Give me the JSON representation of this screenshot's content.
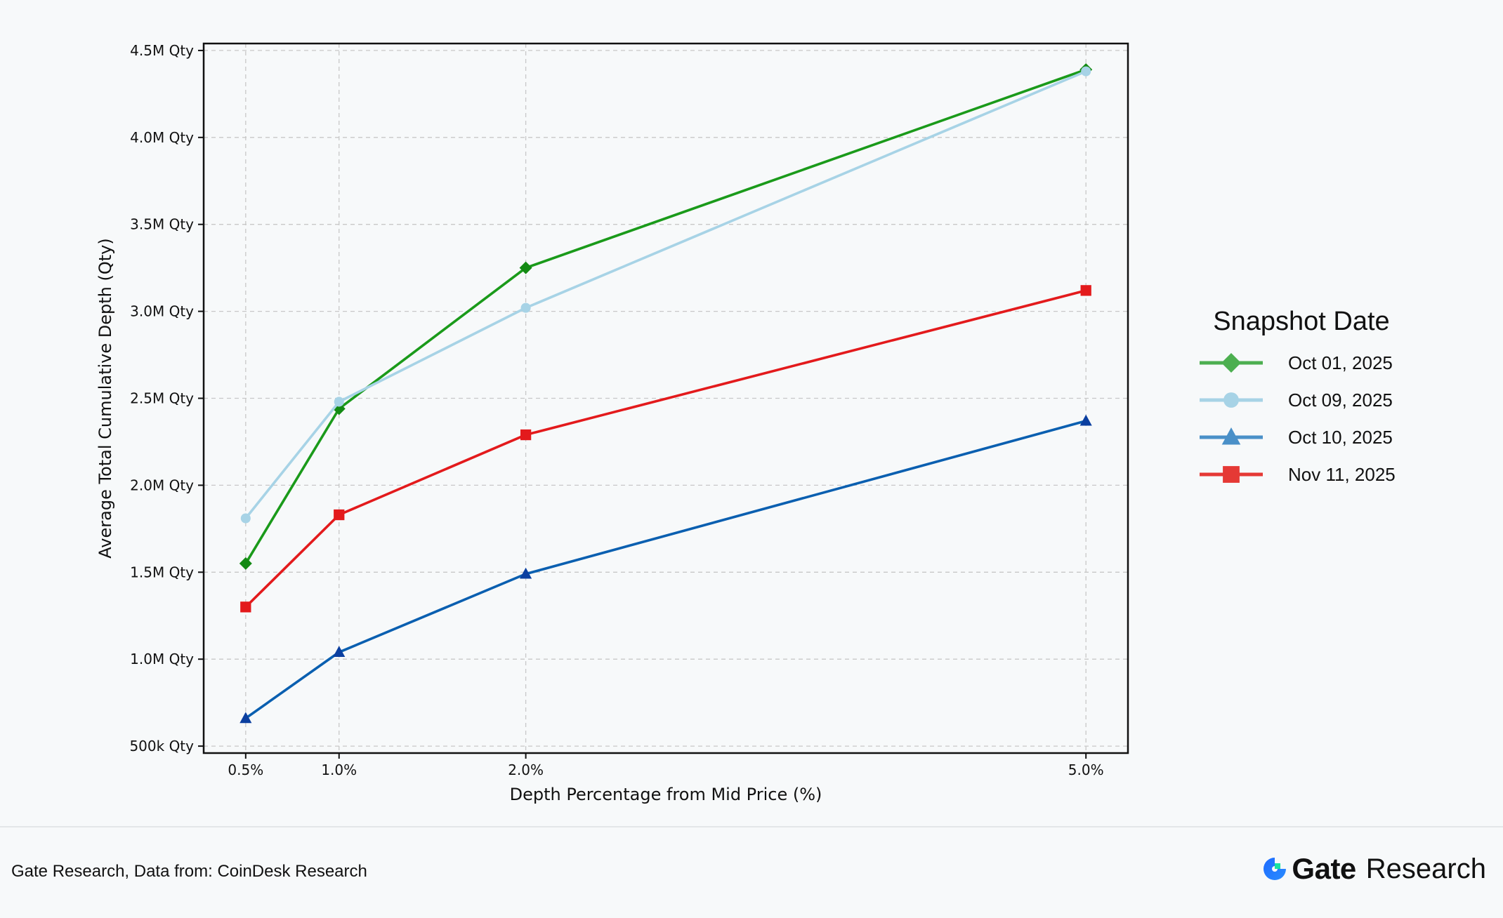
{
  "chart_data": {
    "type": "line",
    "xlabel": "Depth Percentage from Mid Price (%)",
    "ylabel": "Average Total Cumulative Depth (Qty)",
    "x": [
      0.5,
      1.0,
      2.0,
      5.0
    ],
    "x_tick_labels": [
      "0.5%",
      "1.0%",
      "2.0%",
      "5.0%"
    ],
    "xlim": [
      0.275,
      5.225
    ],
    "ylim": [
      460000,
      4540000
    ],
    "y_ticks": [
      500000,
      1000000,
      1500000,
      2000000,
      2500000,
      3000000,
      3500000,
      4000000,
      4500000
    ],
    "y_tick_labels": [
      "500k Qty",
      "1.0M Qty",
      "1.5M Qty",
      "2.0M Qty",
      "2.5M Qty",
      "3.0M Qty",
      "3.5M Qty",
      "4.0M Qty",
      "4.5M Qty"
    ],
    "grid": true,
    "legend_title": "Snapshot Date",
    "legend_position": "right, outside plot",
    "series": [
      {
        "name": "Oct 01, 2025",
        "values": [
          1550000,
          2440000,
          3250000,
          4390000
        ],
        "color": "#1a9a1a",
        "legend_color": "#4caf50",
        "marker": "diamond"
      },
      {
        "name": "Oct 09, 2025",
        "values": [
          1810000,
          2480000,
          3020000,
          4380000
        ],
        "color": "#a7d3e6",
        "legend_color": "#a7d3e6",
        "marker": "circle"
      },
      {
        "name": "Oct 10, 2025",
        "values": [
          660000,
          1040000,
          1490000,
          2370000
        ],
        "color": "#0a5fb0",
        "legend_color": "#4a90c8",
        "marker": "triangle"
      },
      {
        "name": "Nov 11, 2025",
        "values": [
          1300000,
          1830000,
          2290000,
          3120000
        ],
        "color": "#e31a1c",
        "legend_color": "#e53935",
        "marker": "square"
      }
    ]
  },
  "footer": {
    "source": "Gate Research, Data from: CoinDesk Research",
    "brand_name": "Gate",
    "brand_suffix": "Research"
  }
}
